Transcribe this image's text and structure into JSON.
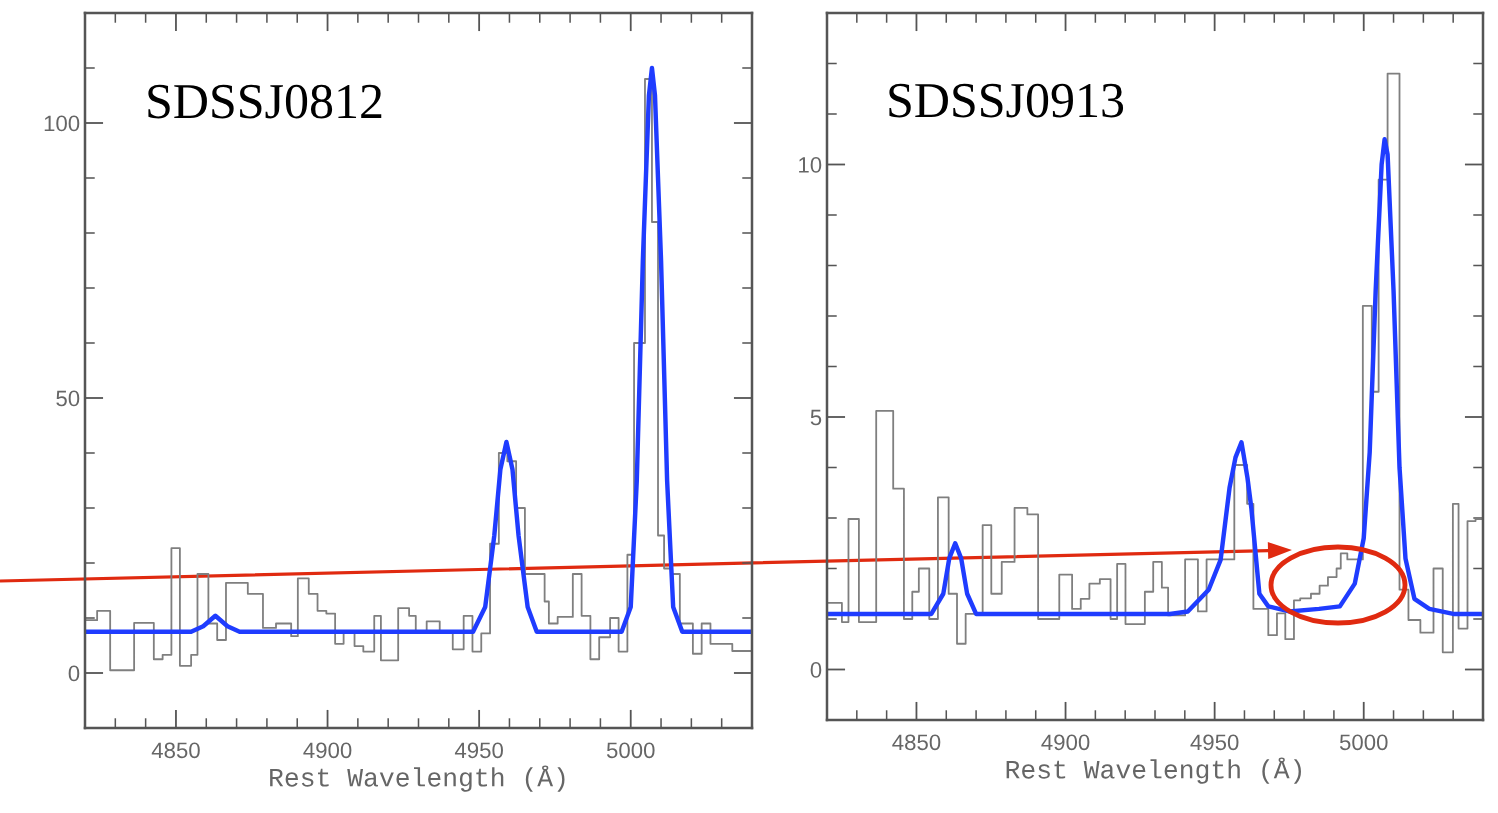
{
  "chart_data": [
    {
      "type": "line",
      "title": "SDSSJ0812",
      "xlabel": "Rest Wavelength (Å)",
      "xlim": [
        4820,
        5040
      ],
      "ylim": [
        -10,
        120
      ],
      "xticks": [
        {
          "value": 4820,
          "label": null
        },
        {
          "value": 4830,
          "label": null
        },
        {
          "value": 4840,
          "label": null
        },
        4850,
        {
          "value": 4860,
          "label": null
        },
        {
          "value": 4870,
          "label": null
        },
        {
          "value": 4880,
          "label": null
        },
        {
          "value": 4890,
          "label": null
        },
        4900,
        {
          "value": 4910,
          "label": null
        },
        {
          "value": 4920,
          "label": null
        },
        {
          "value": 4930,
          "label": null
        },
        {
          "value": 4940,
          "label": null
        },
        4950,
        {
          "value": 4960,
          "label": null
        },
        {
          "value": 4970,
          "label": null
        },
        {
          "value": 4980,
          "label": null
        },
        {
          "value": 4990,
          "label": null
        },
        5000,
        {
          "value": 5010,
          "label": null
        },
        {
          "value": 5020,
          "label": null
        },
        {
          "value": 5030,
          "label": null
        },
        {
          "value": 5040,
          "label": null
        }
      ],
      "yticks": [
        {
          "value": -10,
          "label": null
        },
        0,
        {
          "value": 10,
          "label": null
        },
        {
          "value": 20,
          "label": null
        },
        {
          "value": 30,
          "label": null
        },
        {
          "value": 40,
          "label": null
        },
        50,
        {
          "value": 60,
          "label": null
        },
        {
          "value": 70,
          "label": null
        },
        {
          "value": 80,
          "label": null
        },
        {
          "value": 90,
          "label": null
        },
        100,
        {
          "value": 110,
          "label": null
        },
        {
          "value": 120,
          "label": null
        }
      ],
      "series": [
        {
          "type": "step",
          "color": "#7f7f7f",
          "x": [
            4820,
            4824,
            4828.3,
            4836.2,
            4842.7,
            4845.6,
            4848.5,
            4851.3,
            4855,
            4857.1,
            4860.7,
            4863.6,
            4866.5,
            4873.7,
            4878.7,
            4883,
            4888,
            4890.2,
            4893.8,
            4896.7,
            4899.6,
            4902.5,
            4905.3,
            4908.9,
            4911.8,
            4915.4,
            4917.6,
            4923.3,
            4926.9,
            4929.1,
            4932.7,
            4937,
            4941.3,
            4944.9,
            4947.8,
            4950.7,
            4953.6,
            4956.5,
            4959.3,
            4962.2,
            4965.1,
            4968,
            4971.6,
            4973,
            4975.9,
            4980.9,
            4983.8,
            4986.7,
            4989.6,
            4993.2,
            4996,
            4998.9,
            5001.1,
            5004.7,
            5007,
            5009,
            5011,
            5013.3,
            5016.2,
            5020.5,
            5023.4,
            5026.3,
            5033.5,
            5040
          ],
          "values": [
            9.6,
            11.3,
            0.5,
            9.1,
            2.5,
            3.3,
            22.7,
            1.3,
            3.3,
            18,
            9,
            6,
            16.4,
            14.4,
            8.2,
            9,
            6.7,
            17.2,
            14.4,
            11.3,
            10.8,
            5.3,
            7.5,
            4.9,
            3.9,
            10.4,
            2.3,
            11.8,
            10.4,
            7.5,
            9.4,
            7.5,
            4.3,
            10.4,
            3.9,
            7.2,
            23.5,
            40,
            38.5,
            30,
            18,
            18,
            13,
            9,
            10.2,
            18,
            10.4,
            2.5,
            6.5,
            10,
            3.9,
            21.5,
            60,
            108,
            82,
            25,
            19,
            18,
            9,
            3.5,
            9,
            5.3,
            4,
            4
          ]
        },
        {
          "type": "line",
          "color": "#1f3cff",
          "x": [
            4820,
            4855,
            4859,
            4863,
            4867,
            4871,
            4948,
            4952,
            4955,
            4957,
            4959,
            4961,
            4963,
            4966,
            4969,
            4997,
            5000,
            5002,
            5004,
            5006,
            5007,
            5008,
            5010,
            5012,
            5014,
            5017,
            5040
          ],
          "values": [
            7.5,
            7.5,
            8.5,
            10.4,
            8.5,
            7.5,
            7.5,
            12,
            25,
            37,
            42,
            37,
            25,
            12,
            7.5,
            7.5,
            12,
            35,
            75,
            105,
            110,
            105,
            75,
            35,
            12,
            7.5,
            7.5
          ]
        }
      ]
    },
    {
      "type": "line",
      "title": "SDSSJ0913",
      "xlabel": "Rest Wavelength (Å)",
      "xlim": [
        4820,
        5040
      ],
      "ylim": [
        -1,
        13
      ],
      "xticks": [
        {
          "value": 4820,
          "label": null
        },
        {
          "value": 4830,
          "label": null
        },
        {
          "value": 4840,
          "label": null
        },
        4850,
        {
          "value": 4860,
          "label": null
        },
        {
          "value": 4870,
          "label": null
        },
        {
          "value": 4880,
          "label": null
        },
        {
          "value": 4890,
          "label": null
        },
        4900,
        {
          "value": 4910,
          "label": null
        },
        {
          "value": 4920,
          "label": null
        },
        {
          "value": 4930,
          "label": null
        },
        {
          "value": 4940,
          "label": null
        },
        4950,
        {
          "value": 4960,
          "label": null
        },
        {
          "value": 4970,
          "label": null
        },
        {
          "value": 4980,
          "label": null
        },
        {
          "value": 4990,
          "label": null
        },
        5000,
        {
          "value": 5010,
          "label": null
        },
        {
          "value": 5020,
          "label": null
        },
        {
          "value": 5030,
          "label": null
        },
        {
          "value": 5040,
          "label": null
        }
      ],
      "yticks": [
        {
          "value": -1,
          "label": null
        },
        0,
        {
          "value": 1,
          "label": null
        },
        {
          "value": 2,
          "label": null
        },
        {
          "value": 3,
          "label": null
        },
        {
          "value": 4,
          "label": null
        },
        5,
        {
          "value": 6,
          "label": null
        },
        {
          "value": 7,
          "label": null
        },
        {
          "value": 8,
          "label": null
        },
        {
          "value": 9,
          "label": null
        },
        10,
        {
          "value": 11,
          "label": null
        },
        {
          "value": 12,
          "label": null
        },
        {
          "value": 13,
          "label": null
        }
      ],
      "series": [
        {
          "type": "step",
          "color": "#7f7f7f",
          "x": [
            4820,
            4825,
            4827.2,
            4830.7,
            4836.5,
            4842.2,
            4845.8,
            4848.6,
            4850.8,
            4854.3,
            4857.2,
            4860.8,
            4863.6,
            4866.5,
            4872.2,
            4875.1,
            4878.6,
            4882.9,
            4887.2,
            4890.8,
            4897.9,
            4902.2,
            4905.1,
            4908,
            4911.5,
            4915.1,
            4917.3,
            4920.1,
            4926.6,
            4929.4,
            4932.3,
            4934.4,
            4940.1,
            4944.4,
            4947.3,
            4952.3,
            4956.6,
            4960.9,
            4963,
            4968,
            4970.9,
            4973.7,
            4976.6,
            4978.7,
            4982.3,
            4985.2,
            4988,
            4990.9,
            4992.3,
            4994.5,
            4999.7,
            5002.7,
            5005,
            5008,
            5012,
            5015,
            5019,
            5023.4,
            5026.5,
            5029.9,
            5031.8,
            5034.8,
            5037.5,
            5040
          ],
          "values": [
            1.32,
            0.94,
            2.98,
            0.94,
            5.12,
            3.58,
            1,
            1.54,
            2,
            1,
            3.41,
            1.5,
            0.51,
            1.1,
            2.86,
            1.5,
            2.13,
            3.2,
            3.07,
            1,
            1.88,
            1.2,
            1.4,
            1.7,
            1.79,
            1,
            2.09,
            0.9,
            1.54,
            2.13,
            1.62,
            1.07,
            2.18,
            1.15,
            2.18,
            2.18,
            4.05,
            3.28,
            1.2,
            0.68,
            1.11,
            0.6,
            1.37,
            1.41,
            1.5,
            1.66,
            1.83,
            2,
            2.3,
            2.18,
            7.2,
            5.5,
            9.7,
            11.8,
            1.58,
            0.98,
            0.73,
            2,
            0.34,
            3.28,
            0.81,
            2.94,
            2.98,
            2.98
          ]
        },
        {
          "type": "line",
          "color": "#1f3cff",
          "x": [
            4820,
            4855,
            4859,
            4861,
            4863,
            4865,
            4867,
            4870,
            4935,
            4941,
            4948,
            4952,
            4955,
            4957,
            4959,
            4961,
            4962.3,
            4965,
            4968,
            4975,
            4985,
            4992,
            4997,
            5000,
            5002,
            5004,
            5006,
            5007,
            5008,
            5010,
            5012,
            5014,
            5017,
            5022,
            5030,
            5040
          ],
          "values": [
            1.1,
            1.1,
            1.5,
            2.2,
            2.5,
            2.2,
            1.5,
            1.1,
            1.1,
            1.15,
            1.58,
            2.17,
            3.6,
            4.2,
            4.5,
            3.8,
            3.2,
            1.5,
            1.25,
            1.15,
            1.2,
            1.25,
            1.7,
            2.6,
            4.3,
            7.5,
            10,
            10.5,
            10.2,
            7.5,
            4,
            2.2,
            1.4,
            1.2,
            1.1,
            1.1
          ]
        }
      ]
    }
  ]
}
